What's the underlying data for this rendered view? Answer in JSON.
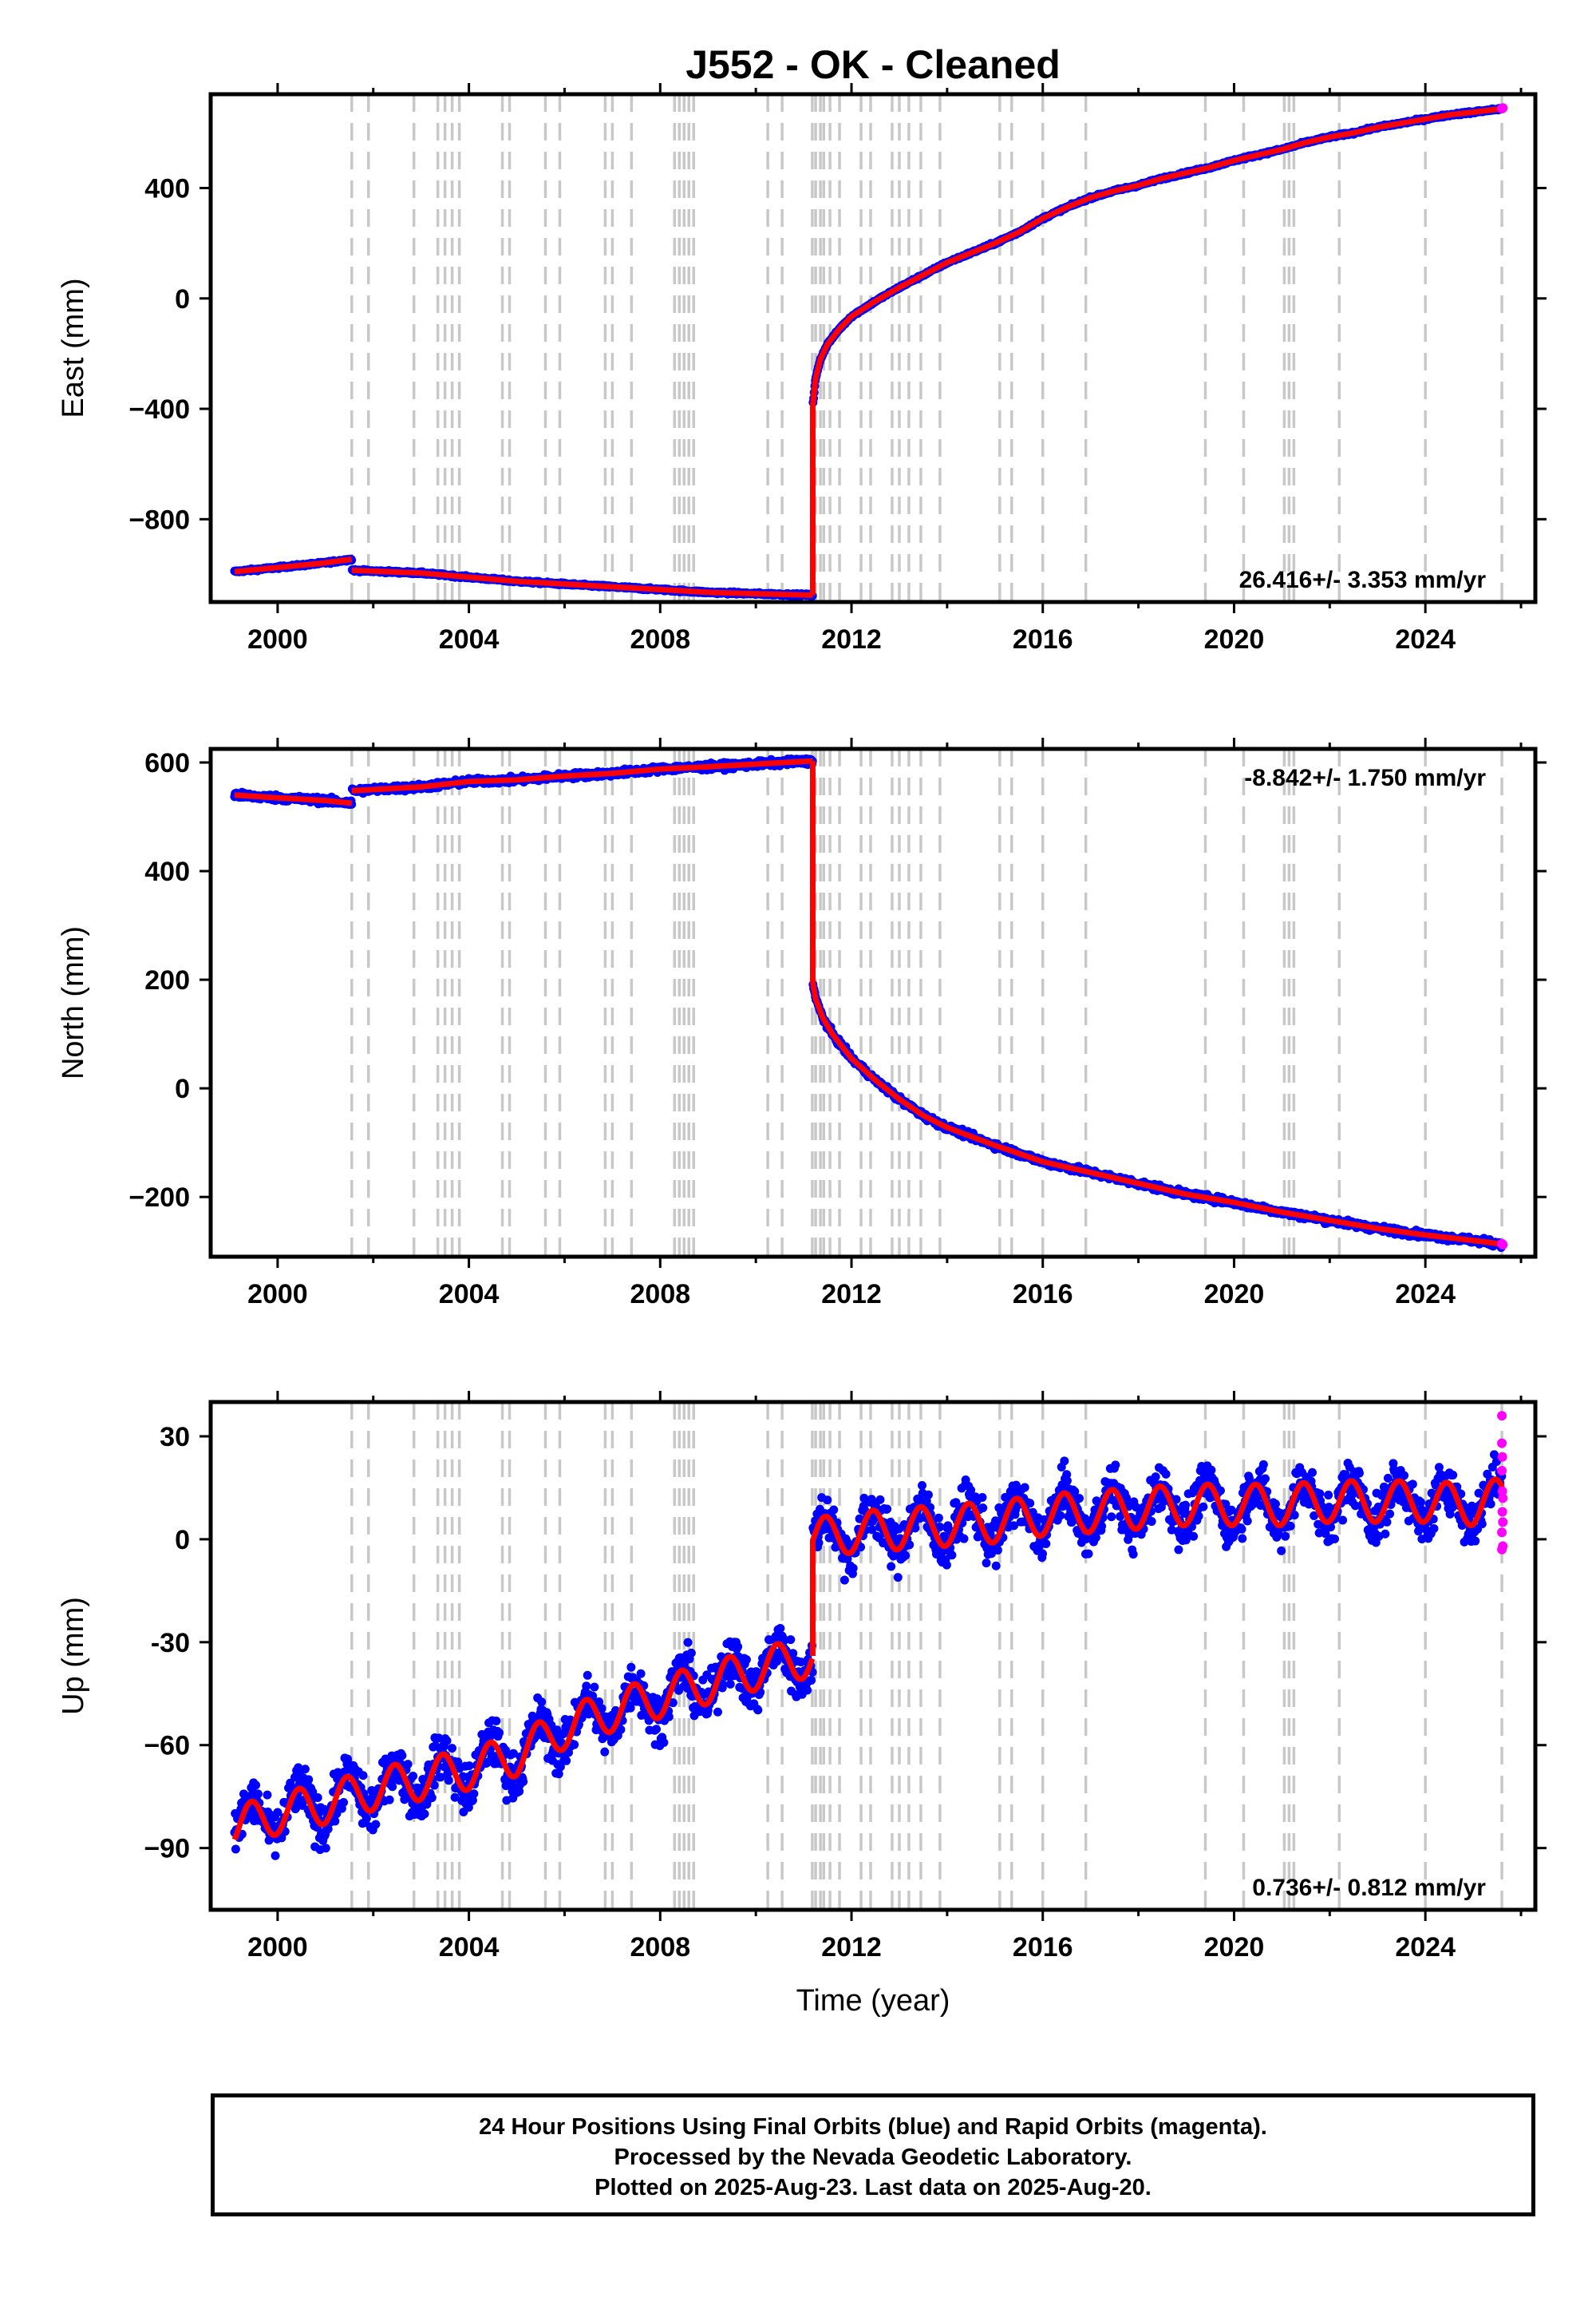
{
  "title": "J552  - OK - Cleaned",
  "colors": {
    "final_orbits": "#0000ff",
    "rapid_orbits": "#ff00ff",
    "model": "#ff0000",
    "event_lines": "#c8c8c8",
    "frame": "#000000"
  },
  "event_lines_x": [
    2001.55,
    2001.9,
    2002.85,
    2003.35,
    2003.5,
    2003.65,
    2003.8,
    2004.7,
    2004.85,
    2005.6,
    2005.9,
    2006.85,
    2007.0,
    2007.4,
    2008.3,
    2008.4,
    2008.5,
    2008.6,
    2008.7,
    2010.25,
    2010.55,
    2011.18,
    2011.25,
    2011.35,
    2011.42,
    2011.55,
    2011.75,
    2012.2,
    2012.4,
    2012.85,
    2013.0,
    2013.2,
    2013.45,
    2013.85,
    2015.1,
    2015.35,
    2016.0,
    2016.9,
    2019.4,
    2020.2,
    2021.05,
    2021.15,
    2021.25,
    2022.2,
    2024.0,
    2025.6
  ],
  "chart_data": [
    {
      "type": "scatter",
      "name": "east",
      "ylabel": "East (mm)",
      "xlabel": "",
      "xlim": [
        1998.6,
        2026.3
      ],
      "ylim": [
        -1100,
        740
      ],
      "x_ticks": [
        2000,
        2004,
        2008,
        2012,
        2016,
        2020,
        2024
      ],
      "y_ticks": [
        400,
        0,
        -400,
        -800
      ],
      "y_tick_labels": [
        "400",
        "0",
        "−400",
        "−800"
      ],
      "rate_label": "26.416+/- 3.353 mm/yr",
      "rate_position": "bottom-right",
      "noise": 3,
      "model_segments": [
        [
          [
            1999.1,
            -990
          ],
          [
            1999.7,
            -980
          ],
          [
            2000.3,
            -970
          ],
          [
            2000.9,
            -960
          ],
          [
            2001.55,
            -945
          ]
        ],
        [
          [
            2001.55,
            -985
          ],
          [
            2003.0,
            -995
          ],
          [
            2004.0,
            -1010
          ],
          [
            2005.0,
            -1025
          ],
          [
            2006.0,
            -1035
          ],
          [
            2007.0,
            -1045
          ],
          [
            2008.0,
            -1055
          ],
          [
            2009.0,
            -1065
          ],
          [
            2010.0,
            -1070
          ],
          [
            2011.19,
            -1075
          ]
        ],
        [
          [
            2011.19,
            -1075
          ],
          [
            2011.19,
            -390
          ]
        ],
        [
          [
            2011.19,
            -390
          ],
          [
            2011.25,
            -290
          ],
          [
            2011.35,
            -220
          ],
          [
            2011.5,
            -165
          ],
          [
            2011.75,
            -110
          ],
          [
            2012.0,
            -65
          ],
          [
            2012.5,
            -10
          ],
          [
            2013.0,
            40
          ],
          [
            2013.5,
            85
          ],
          [
            2014.0,
            130
          ],
          [
            2014.5,
            165
          ],
          [
            2015.0,
            200
          ],
          [
            2015.5,
            240
          ],
          [
            2016.0,
            290
          ],
          [
            2016.5,
            330
          ],
          [
            2017.0,
            365
          ],
          [
            2017.5,
            390
          ],
          [
            2018.0,
            410
          ],
          [
            2018.5,
            435
          ],
          [
            2019.0,
            455
          ],
          [
            2019.5,
            475
          ],
          [
            2020.0,
            500
          ],
          [
            2020.5,
            520
          ],
          [
            2021.0,
            540
          ],
          [
            2021.5,
            565
          ],
          [
            2022.0,
            585
          ],
          [
            2022.5,
            600
          ],
          [
            2023.0,
            620
          ],
          [
            2023.5,
            635
          ],
          [
            2024.0,
            650
          ],
          [
            2024.5,
            665
          ],
          [
            2025.0,
            675
          ],
          [
            2025.62,
            688
          ]
        ]
      ],
      "rapid_points": [
        [
          2025.6,
          688
        ],
        [
          2025.62,
          690
        ]
      ]
    },
    {
      "type": "scatter",
      "name": "north",
      "ylabel": "North (mm)",
      "xlabel": "",
      "xlim": [
        1998.6,
        2026.3
      ],
      "ylim": [
        -310,
        625
      ],
      "x_ticks": [
        2000,
        2004,
        2008,
        2012,
        2016,
        2020,
        2024
      ],
      "y_ticks": [
        600,
        400,
        200,
        0,
        -200
      ],
      "y_tick_labels": [
        "600",
        "400",
        "200",
        "0",
        "−200"
      ],
      "rate_label": "-8.842+/- 1.750 mm/yr",
      "rate_position": "top-right",
      "noise": 4,
      "model_segments": [
        [
          [
            1999.1,
            540
          ],
          [
            2000.0,
            535
          ],
          [
            2001.0,
            530
          ],
          [
            2001.55,
            525
          ]
        ],
        [
          [
            2001.55,
            548
          ],
          [
            2003.0,
            555
          ],
          [
            2004.0,
            565
          ],
          [
            2005.0,
            568
          ],
          [
            2006.0,
            575
          ],
          [
            2007.0,
            580
          ],
          [
            2008.0,
            588
          ],
          [
            2009.0,
            592
          ],
          [
            2010.0,
            597
          ],
          [
            2011.19,
            603
          ]
        ],
        [
          [
            2011.19,
            603
          ],
          [
            2011.19,
            195
          ]
        ],
        [
          [
            2011.19,
            195
          ],
          [
            2011.25,
            165
          ],
          [
            2011.4,
            130
          ],
          [
            2011.6,
            100
          ],
          [
            2012.0,
            55
          ],
          [
            2012.5,
            15
          ],
          [
            2013.0,
            -20
          ],
          [
            2013.5,
            -50
          ],
          [
            2014.0,
            -72
          ],
          [
            2015.0,
            -105
          ],
          [
            2016.0,
            -135
          ],
          [
            2017.0,
            -155
          ],
          [
            2018.0,
            -175
          ],
          [
            2019.0,
            -195
          ],
          [
            2020.0,
            -210
          ],
          [
            2021.0,
            -228
          ],
          [
            2022.0,
            -243
          ],
          [
            2023.0,
            -258
          ],
          [
            2024.0,
            -270
          ],
          [
            2025.0,
            -280
          ],
          [
            2025.62,
            -287
          ]
        ]
      ],
      "rapid_points": [
        [
          2025.6,
          -286
        ],
        [
          2025.62,
          -288
        ]
      ]
    },
    {
      "type": "scatter",
      "name": "up",
      "ylabel": "Up (mm)",
      "xlabel": "Time (year)",
      "xlim": [
        1998.6,
        2026.3
      ],
      "ylim": [
        -108,
        40
      ],
      "x_ticks": [
        2000,
        2004,
        2008,
        2012,
        2016,
        2020,
        2024
      ],
      "y_ticks": [
        30,
        0,
        -30,
        -60,
        -90
      ],
      "y_tick_labels": [
        "30",
        "0",
        "-30",
        "−60",
        "−90"
      ],
      "rate_label": "0.736+/- 0.812 mm/yr",
      "rate_position": "bottom-right",
      "noise": 5,
      "seasonal_amplitude": 6,
      "model_segments": [
        [
          [
            1999.1,
            -84
          ],
          [
            2000.0,
            -80
          ],
          [
            2001.0,
            -77
          ],
          [
            2002.0,
            -73
          ],
          [
            2003.0,
            -70
          ],
          [
            2004.0,
            -67
          ],
          [
            2005.0,
            -63
          ],
          [
            2006.0,
            -55
          ],
          [
            2007.0,
            -50
          ],
          [
            2008.0,
            -46
          ],
          [
            2009.0,
            -42
          ],
          [
            2010.0,
            -38
          ],
          [
            2011.19,
            -34
          ]
        ],
        [
          [
            2011.19,
            -34
          ],
          [
            2011.19,
            0
          ]
        ],
        [
          [
            2011.19,
            0
          ],
          [
            2012.0,
            2
          ],
          [
            2013.0,
            3
          ],
          [
            2014.0,
            4
          ],
          [
            2015.0,
            5
          ],
          [
            2016.0,
            7
          ],
          [
            2017.0,
            8
          ],
          [
            2018.0,
            9
          ],
          [
            2019.0,
            10
          ],
          [
            2020.0,
            10
          ],
          [
            2021.0,
            10
          ],
          [
            2022.0,
            11
          ],
          [
            2023.0,
            11
          ],
          [
            2024.0,
            11
          ],
          [
            2025.0,
            10
          ],
          [
            2025.62,
            12
          ]
        ]
      ],
      "rapid_points": [
        [
          2025.6,
          36
        ],
        [
          2025.6,
          28
        ],
        [
          2025.6,
          20
        ],
        [
          2025.61,
          14
        ],
        [
          2025.61,
          8
        ],
        [
          2025.62,
          5
        ],
        [
          2025.6,
          2
        ],
        [
          2025.62,
          -2
        ],
        [
          2025.6,
          -3
        ],
        [
          2025.62,
          12
        ],
        [
          2025.61,
          24
        ]
      ]
    }
  ],
  "footer": {
    "line1": "24 Hour Positions Using Final Orbits (blue) and Rapid Orbits (magenta).",
    "line2": "Processed by the Nevada Geodetic Laboratory.",
    "line3": "Plotted on 2025-Aug-23. Last data on 2025-Aug-20."
  }
}
